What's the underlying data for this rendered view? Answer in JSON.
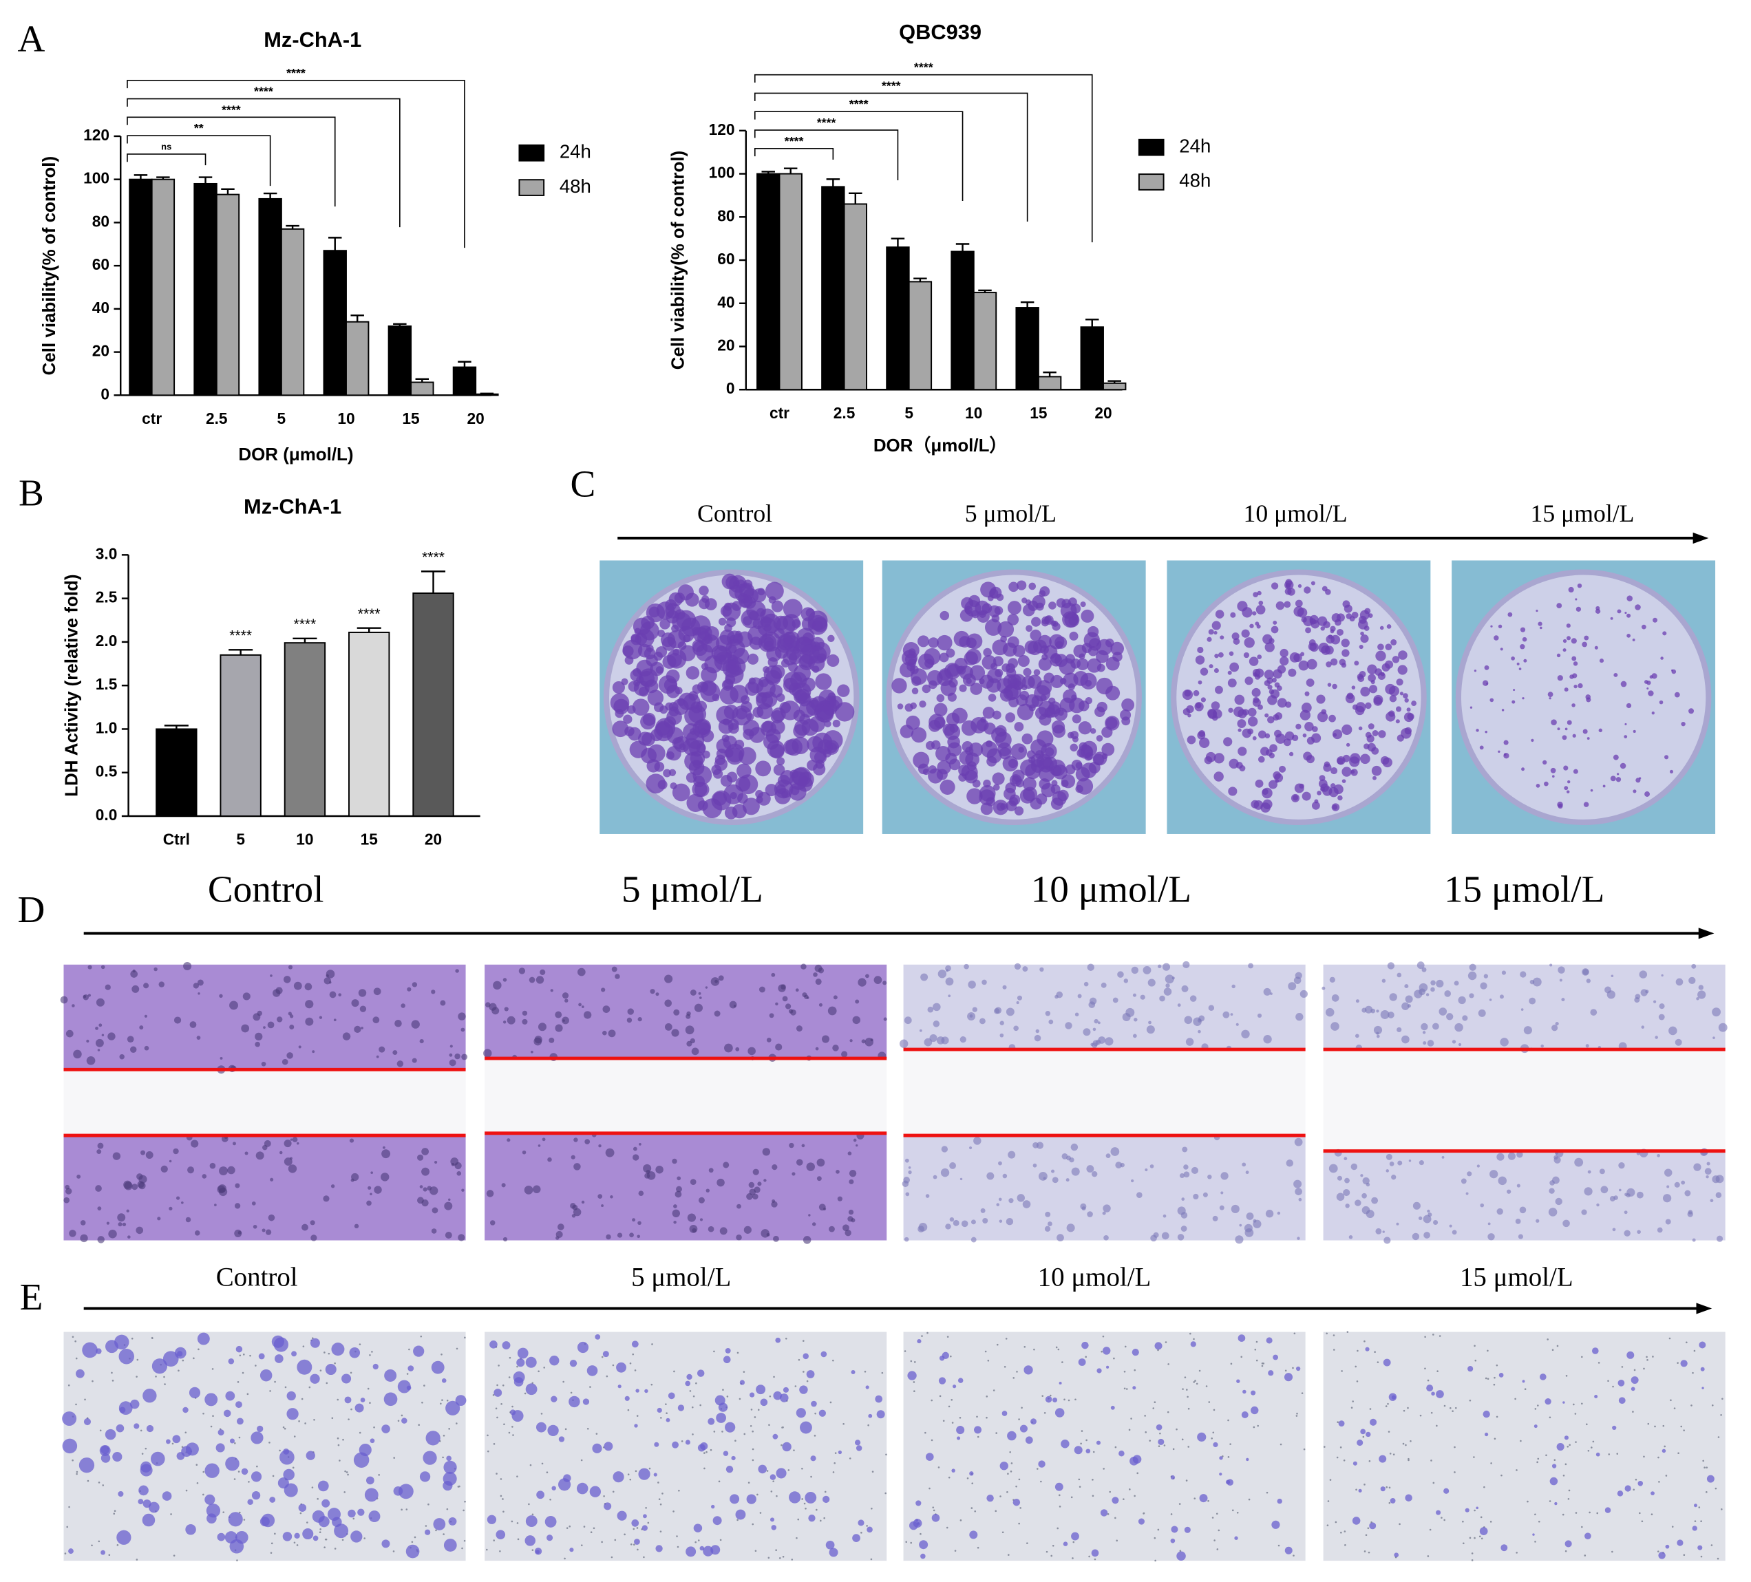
{
  "panel_labels": [
    "A",
    "B",
    "C",
    "D",
    "E"
  ],
  "chart_data": [
    {
      "type": "bar",
      "title": "Mz-ChA-1",
      "x_label": "DOR (μmol/L)",
      "y_label": "Cell viability(% of control)",
      "categories": [
        "ctr",
        "2.5",
        "5",
        "10",
        "15",
        "20"
      ],
      "series": [
        {
          "name": "24h",
          "color": "#000000",
          "values": [
            100,
            98,
            91,
            67,
            32,
            13
          ],
          "errors": [
            2,
            3,
            2.5,
            6,
            1,
            2.5
          ]
        },
        {
          "name": "48h",
          "color": "#a6a6a6",
          "values": [
            100,
            93,
            77,
            34,
            6,
            0.5
          ],
          "errors": [
            1,
            2.5,
            1.5,
            3,
            1.5,
            0.3
          ]
        }
      ],
      "significance": [
        null,
        "ns",
        "**",
        "****",
        "****",
        "****"
      ],
      "ylim": [
        0,
        120
      ],
      "yticks": [
        0,
        20,
        40,
        60,
        80,
        100,
        120
      ],
      "legend": "right"
    },
    {
      "type": "bar",
      "title": "QBC939",
      "x_label": "DOR（μmol/L）",
      "y_label": "Cell viability(% of control)",
      "categories": [
        "ctr",
        "2.5",
        "5",
        "10",
        "15",
        "20"
      ],
      "series": [
        {
          "name": "24h",
          "color": "#000000",
          "values": [
            100,
            94,
            66,
            64,
            38,
            29
          ],
          "errors": [
            1,
            3.5,
            4,
            3.5,
            2.5,
            3.5
          ]
        },
        {
          "name": "48h",
          "color": "#a6a6a6",
          "values": [
            100,
            86,
            50,
            45,
            6,
            3
          ],
          "errors": [
            2.5,
            5,
            1.5,
            1,
            2,
            1
          ]
        }
      ],
      "significance": [
        null,
        "****",
        "****",
        "****",
        "****",
        "****"
      ],
      "ylim": [
        0,
        120
      ],
      "yticks": [
        0,
        20,
        40,
        60,
        80,
        100,
        120
      ],
      "legend": "right"
    },
    {
      "type": "bar",
      "title": "Mz-ChA-1",
      "y_label": "LDH Activity (relative fold)",
      "categories": [
        "Ctrl",
        "5",
        "10",
        "15",
        "20"
      ],
      "values": [
        1.0,
        1.85,
        1.99,
        2.11,
        2.56
      ],
      "errors": [
        0.04,
        0.06,
        0.05,
        0.05,
        0.25
      ],
      "colors": [
        "#000000",
        "#a6a6ad",
        "#808080",
        "#d9d9d9",
        "#595959"
      ],
      "significance": [
        null,
        "****",
        "****",
        "****",
        "****"
      ],
      "ylim": [
        0,
        3.0
      ],
      "yticks": [
        {
          "value": 0,
          "label": "0.0"
        },
        {
          "value": 0.5,
          "label": "0.5"
        },
        {
          "value": 1,
          "label": "1.0"
        },
        {
          "value": 1.5,
          "label": "1.5"
        },
        {
          "value": 2,
          "label": "2.0"
        },
        {
          "value": 2.5,
          "label": "2.5"
        },
        {
          "value": 3,
          "label": "3.0"
        }
      ]
    }
  ],
  "colony_formation": {
    "conditions": [
      "Control",
      "5 μmol/L",
      "10 μmol/L",
      "15 μmol/L"
    ]
  },
  "wound_healing": {
    "conditions": [
      "Control",
      "5 μmol/L",
      "10 μmol/L",
      "15 μmol/L"
    ]
  },
  "transwell": {
    "conditions": [
      "Control",
      "5 μmol/L",
      "10 μmol/L",
      "15 μmol/L"
    ]
  }
}
